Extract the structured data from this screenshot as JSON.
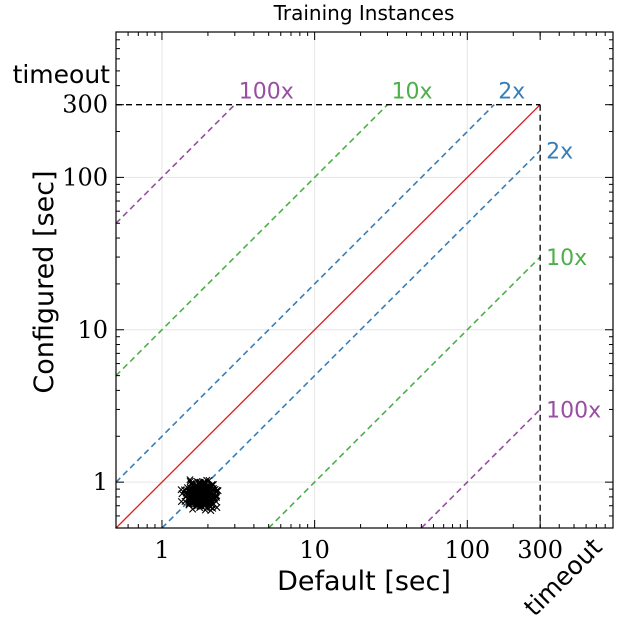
{
  "chart_data": {
    "type": "scatter",
    "title": "Training Instances",
    "xlabel": "Default [sec]",
    "ylabel": "Configured [sec]",
    "xscale": "log",
    "yscale": "log",
    "xlim": [
      0.5,
      900
    ],
    "ylim": [
      0.5,
      900
    ],
    "xticks": [
      {
        "value": 1,
        "label": "1"
      },
      {
        "value": 10,
        "label": "10"
      },
      {
        "value": 100,
        "label": "100"
      },
      {
        "value": 300,
        "label": "300"
      }
    ],
    "yticks": [
      {
        "value": 1,
        "label": "1"
      },
      {
        "value": 10,
        "label": "10"
      },
      {
        "value": 100,
        "label": "100"
      },
      {
        "value": 300,
        "label": "300"
      }
    ],
    "timeout": 300,
    "timeout_label_x": "timeout",
    "timeout_label_y": "timeout",
    "grid": true,
    "identity_color": "#e41a1c",
    "ratio_lines": [
      {
        "factor": 2,
        "label": "2x",
        "color": "#377eb8"
      },
      {
        "factor": 10,
        "label": "10x",
        "color": "#4daf4a"
      },
      {
        "factor": 100,
        "label": "100x",
        "color": "#984ea3"
      }
    ],
    "marker": "x",
    "marker_color": "#000000",
    "cluster": {
      "x_range": [
        1.1,
        2.6
      ],
      "y_range": [
        0.6,
        1.2
      ],
      "center": [
        1.8,
        0.82
      ],
      "count": 300
    }
  }
}
